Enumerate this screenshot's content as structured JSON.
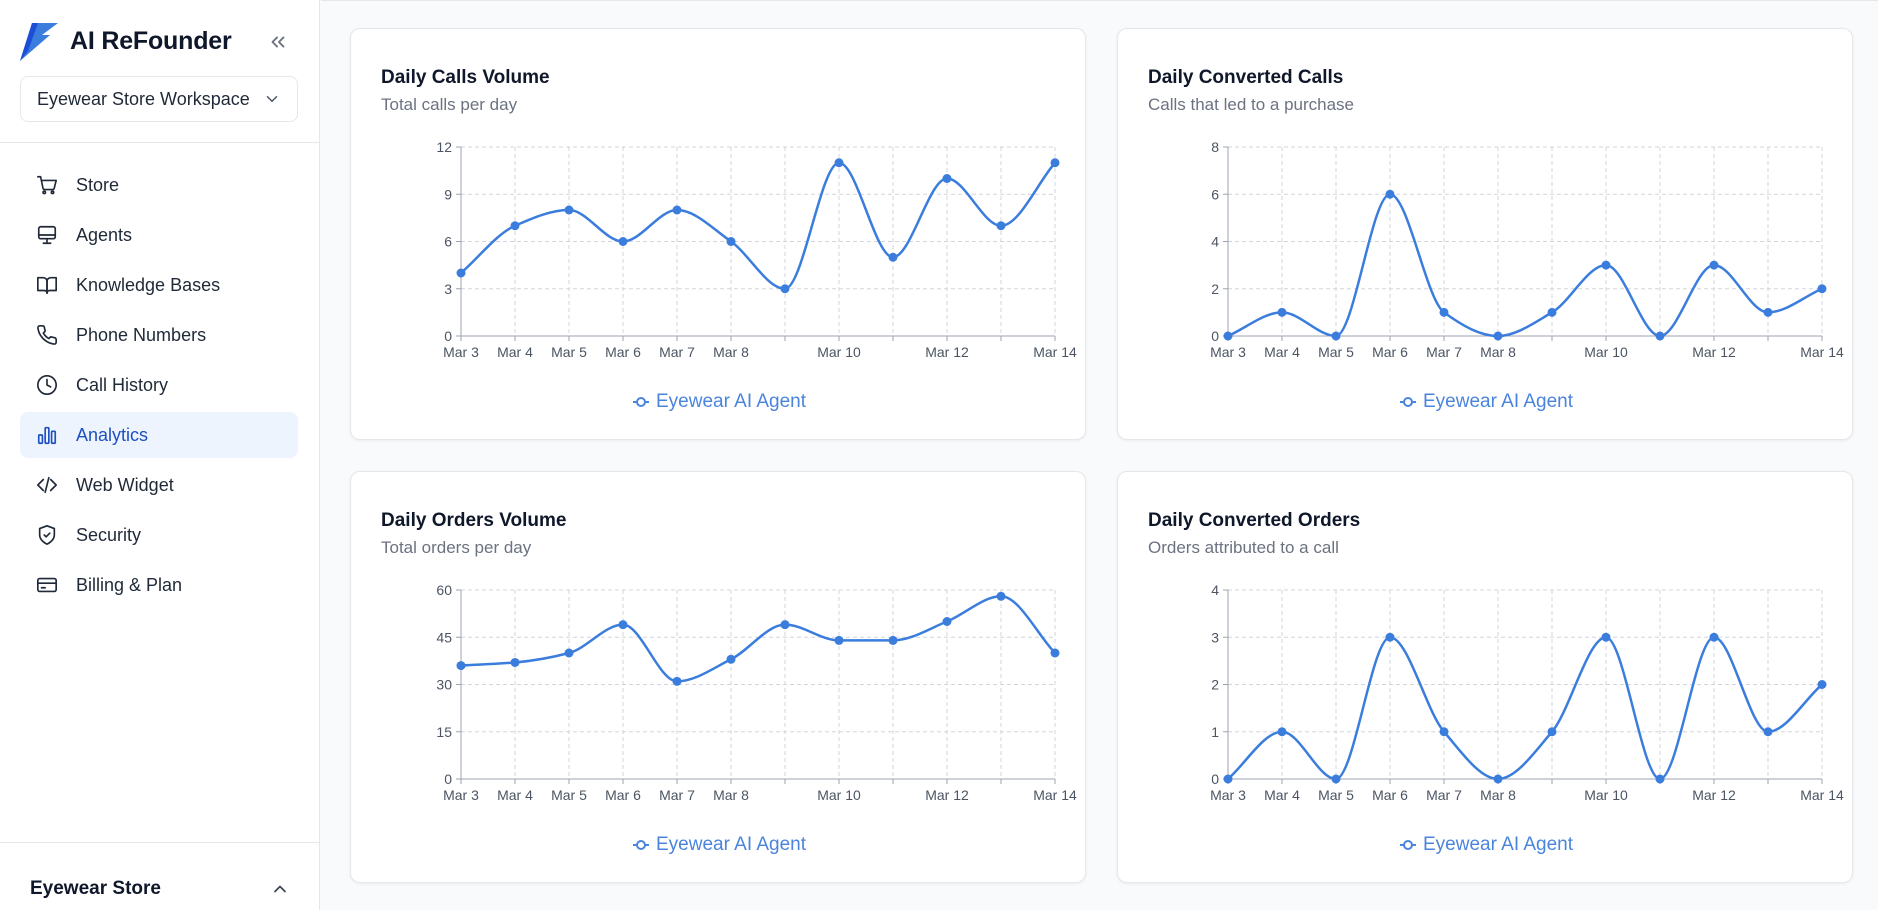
{
  "brand": {
    "title": "AI ReFounder"
  },
  "workspace": {
    "label": "Eyewear Store Workspace"
  },
  "nav": [
    {
      "label": "Store",
      "icon": "cart-icon"
    },
    {
      "label": "Agents",
      "icon": "monitor-icon"
    },
    {
      "label": "Knowledge Bases",
      "icon": "book-icon"
    },
    {
      "label": "Phone Numbers",
      "icon": "phone-icon"
    },
    {
      "label": "Call History",
      "icon": "clock-icon"
    },
    {
      "label": "Analytics",
      "icon": "bar-chart-icon",
      "active": true
    },
    {
      "label": "Web Widget",
      "icon": "code-icon"
    },
    {
      "label": "Security",
      "icon": "shield-check-icon"
    },
    {
      "label": "Billing & Plan",
      "icon": "credit-card-icon"
    }
  ],
  "footer": {
    "store_label": "Eyewear Store"
  },
  "colors": {
    "accent": "#3b7ddd",
    "active_bg": "#eef4fe",
    "active_text": "#1e4fc1"
  },
  "chart_data": [
    {
      "type": "line",
      "title": "Daily Calls Volume",
      "subtitle": "Total calls per day",
      "x": [
        "Mar 3",
        "Mar 4",
        "Mar 5",
        "Mar 6",
        "Mar 7",
        "Mar 8",
        "Mar 9",
        "Mar 10",
        "Mar 11",
        "Mar 12",
        "Mar 13",
        "Mar 14"
      ],
      "tick_labels": [
        "Mar 3",
        "Mar 4",
        "Mar 5",
        "Mar 6",
        "Mar 7",
        "Mar 8",
        "",
        "Mar 10",
        "",
        "Mar 12",
        "",
        "Mar 14"
      ],
      "series": [
        {
          "name": "Eyewear AI Agent",
          "values": [
            4,
            7,
            8,
            6,
            8,
            6,
            3,
            11,
            5,
            10,
            7,
            11
          ]
        }
      ],
      "ylim": [
        0,
        12
      ],
      "yticks": [
        0,
        3,
        6,
        9,
        12
      ],
      "grid": true,
      "legend": "bottom"
    },
    {
      "type": "line",
      "title": "Daily Converted Calls",
      "subtitle": "Calls that led to a purchase",
      "x": [
        "Mar 3",
        "Mar 4",
        "Mar 5",
        "Mar 6",
        "Mar 7",
        "Mar 8",
        "Mar 9",
        "Mar 10",
        "Mar 11",
        "Mar 12",
        "Mar 13",
        "Mar 14"
      ],
      "tick_labels": [
        "Mar 3",
        "Mar 4",
        "Mar 5",
        "Mar 6",
        "Mar 7",
        "Mar 8",
        "",
        "Mar 10",
        "",
        "Mar 12",
        "",
        "Mar 14"
      ],
      "series": [
        {
          "name": "Eyewear AI Agent",
          "values": [
            0,
            1,
            0,
            6,
            1,
            0,
            1,
            3,
            0,
            3,
            1,
            2
          ]
        }
      ],
      "ylim": [
        0,
        8
      ],
      "yticks": [
        0,
        2,
        4,
        6,
        8
      ],
      "grid": true,
      "legend": "bottom"
    },
    {
      "type": "line",
      "title": "Daily Orders Volume",
      "subtitle": "Total orders per day",
      "x": [
        "Mar 3",
        "Mar 4",
        "Mar 5",
        "Mar 6",
        "Mar 7",
        "Mar 8",
        "Mar 9",
        "Mar 10",
        "Mar 11",
        "Mar 12",
        "Mar 13",
        "Mar 14"
      ],
      "tick_labels": [
        "Mar 3",
        "Mar 4",
        "Mar 5",
        "Mar 6",
        "Mar 7",
        "Mar 8",
        "",
        "Mar 10",
        "",
        "Mar 12",
        "",
        "Mar 14"
      ],
      "series": [
        {
          "name": "Eyewear AI Agent",
          "values": [
            36,
            37,
            40,
            49,
            31,
            38,
            49,
            44,
            44,
            50,
            58,
            40
          ]
        }
      ],
      "ylim": [
        0,
        60
      ],
      "yticks": [
        0,
        15,
        30,
        45,
        60
      ],
      "grid": true,
      "legend": "bottom"
    },
    {
      "type": "line",
      "title": "Daily Converted Orders",
      "subtitle": "Orders attributed to a call",
      "x": [
        "Mar 3",
        "Mar 4",
        "Mar 5",
        "Mar 6",
        "Mar 7",
        "Mar 8",
        "Mar 9",
        "Mar 10",
        "Mar 11",
        "Mar 12",
        "Mar 13",
        "Mar 14"
      ],
      "tick_labels": [
        "Mar 3",
        "Mar 4",
        "Mar 5",
        "Mar 6",
        "Mar 7",
        "Mar 8",
        "",
        "Mar 10",
        "",
        "Mar 12",
        "",
        "Mar 14"
      ],
      "series": [
        {
          "name": "Eyewear AI Agent",
          "values": [
            0,
            1,
            0,
            3,
            1,
            0,
            1,
            3,
            0,
            3,
            1,
            2
          ]
        }
      ],
      "ylim": [
        0,
        4
      ],
      "yticks": [
        0,
        1,
        2,
        3,
        4
      ],
      "grid": true,
      "legend": "bottom"
    }
  ]
}
